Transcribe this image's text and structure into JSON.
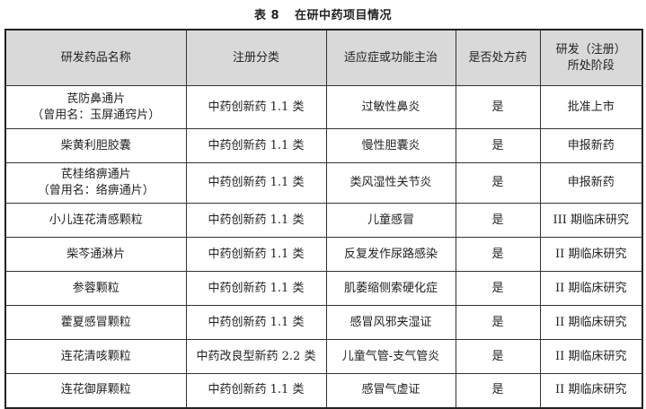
{
  "caption": {
    "label": "表 8",
    "title": "在研中药项目情况"
  },
  "table": {
    "headers": [
      "研发药品名称",
      "注册分类",
      "适应症或功能主治",
      "是否处方药",
      "研发（注册）",
      "所处阶段"
    ],
    "rows": [
      {
        "name": "芪防鼻通片",
        "alias": "（曾用名：玉屏通窍片）",
        "category": "中药创新药 1.1 类",
        "indication": "过敏性鼻炎",
        "prescription": "是",
        "stage": "批准上市"
      },
      {
        "name": "柴黄利胆胶囊",
        "alias": "",
        "category": "中药创新药 1.1 类",
        "indication": "慢性胆囊炎",
        "prescription": "是",
        "stage": "申报新药"
      },
      {
        "name": "芪桂络痹通片",
        "alias": "（曾用名：络痹通片）",
        "category": "中药创新药 1.1 类",
        "indication": "类风湿性关节炎",
        "prescription": "是",
        "stage": "申报新药"
      },
      {
        "name": "小儿连花清感颗粒",
        "alias": "",
        "category": "中药创新药 1.1 类",
        "indication": "儿童感冒",
        "prescription": "是",
        "stage": "III 期临床研究"
      },
      {
        "name": "柴芩通淋片",
        "alias": "",
        "category": "中药创新药 1.1 类",
        "indication": "反复发作尿路感染",
        "prescription": "是",
        "stage": "II 期临床研究"
      },
      {
        "name": "参蓉颗粒",
        "alias": "",
        "category": "中药创新药 1.1 类",
        "indication": "肌萎缩侧索硬化症",
        "prescription": "是",
        "stage": "II 期临床研究"
      },
      {
        "name": "藿夏感冒颗粒",
        "alias": "",
        "category": "中药创新药 1.1 类",
        "indication": "感冒风邪夹湿证",
        "prescription": "是",
        "stage": "II 期临床研究"
      },
      {
        "name": "连花清咳颗粒",
        "alias": "",
        "category": "中药改良型新药 2.2 类",
        "indication": "儿童气管-支气管炎",
        "prescription": "是",
        "stage": "II 期临床研究"
      },
      {
        "name": "连花御屏颗粒",
        "alias": "",
        "category": "中药创新药 1.1 类",
        "indication": "感冒气虚证",
        "prescription": "是",
        "stage": "II 期临床研究"
      }
    ]
  }
}
